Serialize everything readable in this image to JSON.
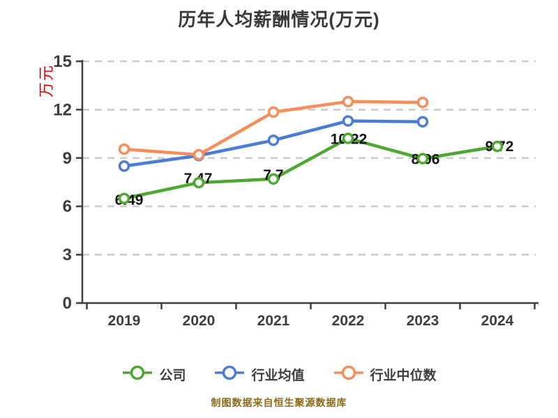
{
  "title": "历年人均薪酬情况(万元)",
  "y_axis_label": "万元",
  "footer": "制图数据来自恒生聚源数据库",
  "colors": {
    "background": "#ffffff",
    "title_text": "#383838",
    "axis_line": "#3f3f3f",
    "axis_text": "#3d3d3d",
    "gridline": "#cccccc",
    "data_label_text": "#141414",
    "y_axis_label_text": "#e60000",
    "footer_text": "#8a6c18",
    "marker_fill": "#ffffff"
  },
  "chart_data": {
    "type": "line",
    "title": "历年人均薪酬情况(万元)",
    "xlabel": "",
    "ylabel": "万元",
    "categories": [
      "2019",
      "2020",
      "2021",
      "2022",
      "2023",
      "2024"
    ],
    "series": [
      {
        "name": "公司",
        "color": "#4da832",
        "values": [
          6.49,
          7.47,
          7.7,
          10.22,
          8.96,
          9.72
        ],
        "point_labels": [
          "6.49",
          "7.47",
          "7.7",
          "10.22",
          "8.96",
          "9.72"
        ]
      },
      {
        "name": "行业均值",
        "color": "#4a7bd5",
        "values": [
          8.5,
          9.15,
          10.1,
          11.3,
          11.25,
          null
        ],
        "point_labels": null
      },
      {
        "name": "行业中位数",
        "color": "#f68e5c",
        "values": [
          9.55,
          9.2,
          11.85,
          12.5,
          12.45,
          null
        ],
        "point_labels": null
      }
    ],
    "ylim": [
      0,
      15
    ],
    "yticks": [
      0,
      3,
      6,
      9,
      12,
      15
    ],
    "grid": "horizontal-dashed",
    "legend_position": "bottom",
    "marker": "circle-white-fill"
  }
}
